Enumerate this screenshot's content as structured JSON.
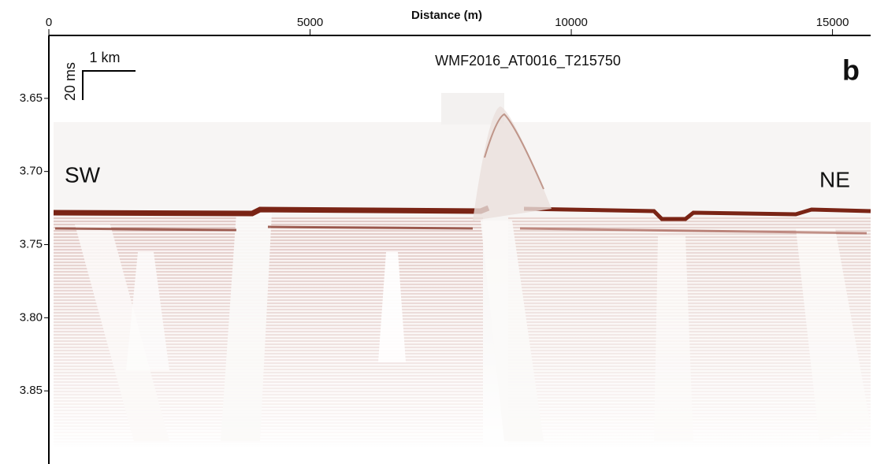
{
  "chart_data": {
    "type": "seismic",
    "title": "WMF2016_AT0016_T215750",
    "panel_label": "b",
    "x_label": "Distance (m)",
    "xlim": [
      0,
      15700
    ],
    "xticks": [
      0,
      5000,
      10000,
      15000
    ],
    "ylim": [
      3.607,
      3.9
    ],
    "yticks": [
      3.65,
      {
        "value": 3.7,
        "label": "3.70"
      },
      3.75,
      {
        "value": 3.8,
        "label": "3.80"
      },
      3.85
    ],
    "annotations": {
      "left": "SW",
      "right": "NE",
      "scale_horizontal": "1 km",
      "scale_vertical": "20 ms"
    },
    "color": "#8a2a1a"
  }
}
